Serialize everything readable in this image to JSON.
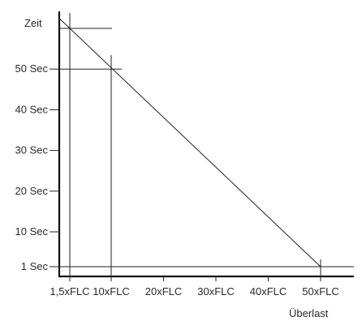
{
  "chart_data": {
    "type": "line",
    "ylabel": "Zeit",
    "xlabel": "Überlast",
    "x_tick_labels": [
      "1,5xFLC",
      "10xFLC",
      "20xFLC",
      "30xFLC",
      "40xFLC",
      "50xFLC"
    ],
    "y_tick_labels": [
      "50 Sec",
      "40 Sec",
      "30 Sec",
      "20 Sec",
      "10 Sec",
      "1 Sec"
    ],
    "series": [
      {
        "x": [
          1.5,
          10,
          50
        ],
        "y": [
          60,
          50,
          1
        ]
      }
    ],
    "reference_points": [
      {
        "x": 1.5,
        "y": 60
      },
      {
        "x": 10,
        "y": 50
      },
      {
        "x": 50,
        "y": 1
      }
    ],
    "grid": false,
    "legend": "none",
    "colors": {
      "line": "#222222",
      "axis": "#111111",
      "text": "#2a2a2a"
    }
  }
}
